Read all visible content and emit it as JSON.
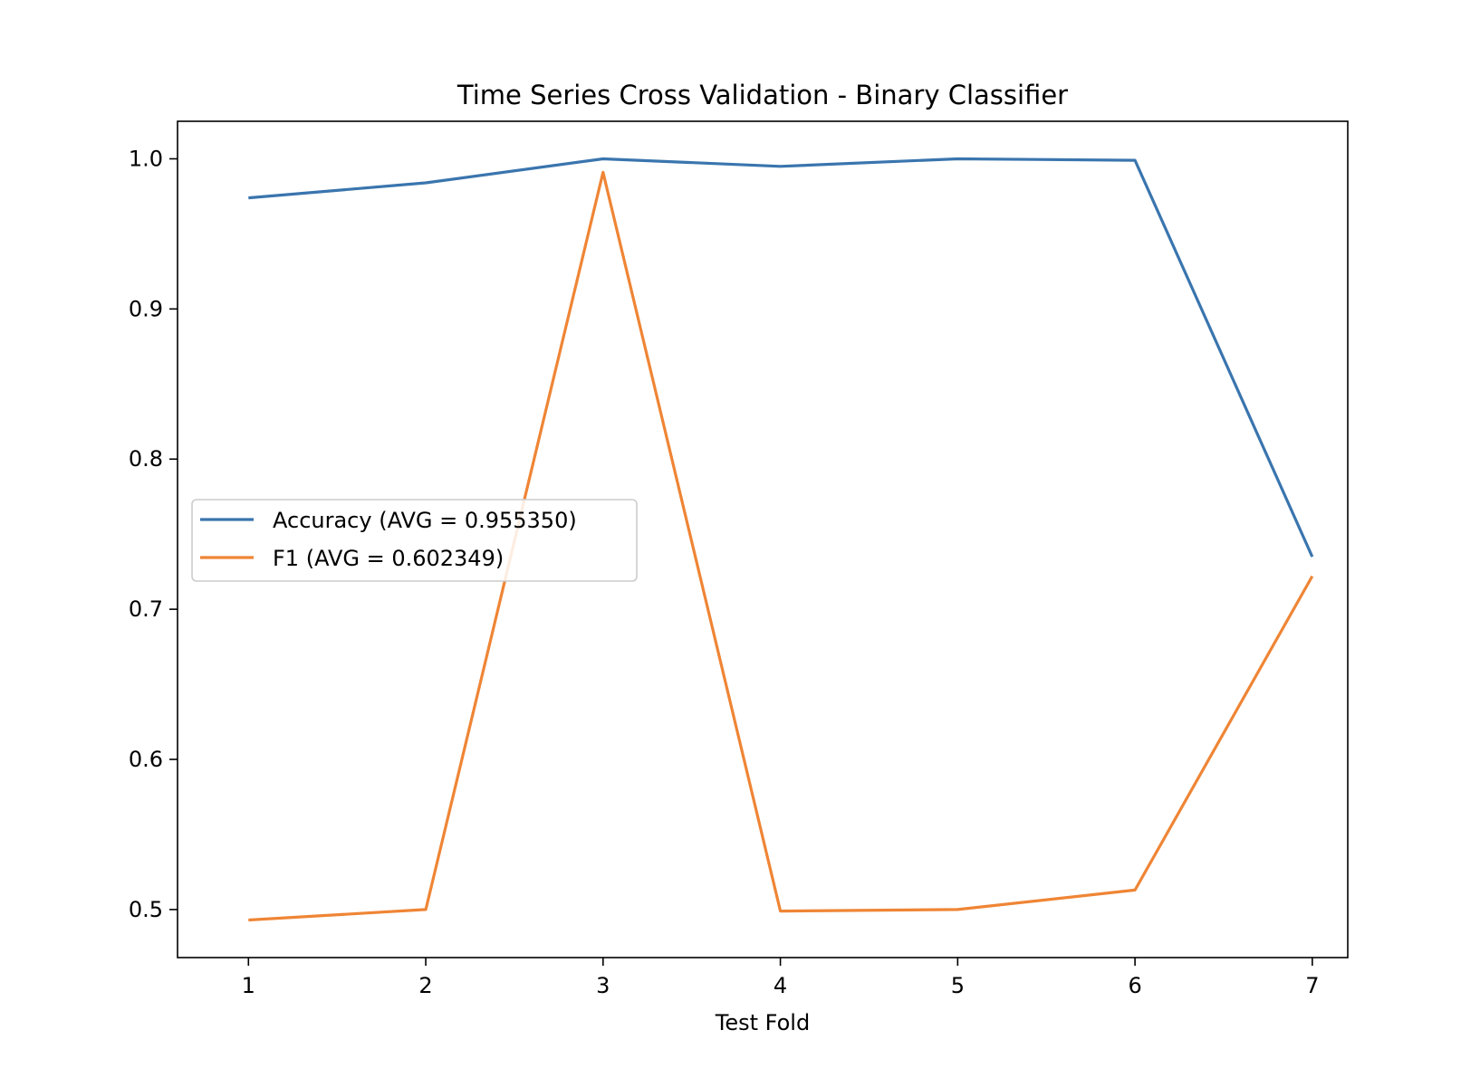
{
  "chart_data": {
    "type": "line",
    "title": "Time Series Cross Validation - Binary Classifier",
    "xlabel": "Test Fold",
    "ylabel": "",
    "x": [
      1,
      2,
      3,
      4,
      5,
      6,
      7
    ],
    "xlim": [
      0.6,
      7.2
    ],
    "ylim": [
      0.468,
      1.025
    ],
    "xticks": [
      1,
      2,
      3,
      4,
      5,
      6,
      7
    ],
    "yticks": [
      0.5,
      0.6,
      0.7,
      0.8,
      0.9,
      1.0
    ],
    "ytick_labels": [
      "0.5",
      "0.6",
      "0.7",
      "0.8",
      "0.9",
      "1.0"
    ],
    "grid": false,
    "legend_position": "center-left",
    "series": [
      {
        "name": "Accuracy (AVG = 0.955350)",
        "color": "#3a75ae",
        "values": [
          0.974,
          0.984,
          1.0,
          0.995,
          1.0,
          0.999,
          0.735
        ]
      },
      {
        "name": "F1 (AVG = 0.602349)",
        "color": "#ef8535",
        "values": [
          0.493,
          0.5,
          0.991,
          0.499,
          0.5,
          0.513,
          0.722
        ]
      }
    ]
  }
}
